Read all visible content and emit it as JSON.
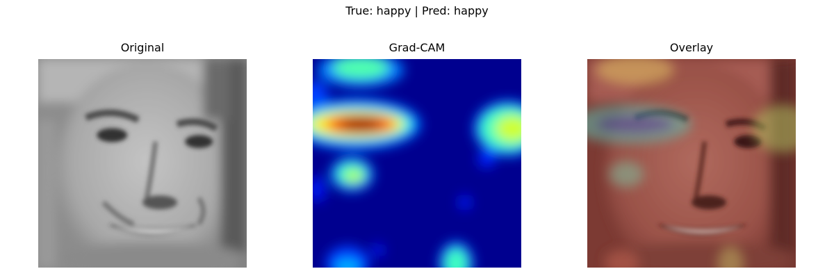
{
  "figure": {
    "suptitle": "True: happy | Pred: happy"
  },
  "panels": [
    {
      "title": "Original"
    },
    {
      "title": "Grad-CAM"
    },
    {
      "title": "Overlay"
    }
  ],
  "colors": {
    "cam_low": "#00008f",
    "cam_high": "#7f0000",
    "overlay_tint": "#8a3a32"
  }
}
